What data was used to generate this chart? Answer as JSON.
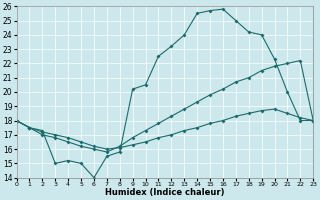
{
  "xlabel": "Humidex (Indice chaleur)",
  "xlim": [
    0,
    23
  ],
  "ylim": [
    14,
    26
  ],
  "xticks": [
    0,
    1,
    2,
    3,
    4,
    5,
    6,
    7,
    8,
    9,
    10,
    11,
    12,
    13,
    14,
    15,
    16,
    17,
    18,
    19,
    20,
    21,
    22,
    23
  ],
  "yticks": [
    14,
    15,
    16,
    17,
    18,
    19,
    20,
    21,
    22,
    23,
    24,
    25,
    26
  ],
  "bg_color": "#cce8ec",
  "line_color": "#1a6b6b",
  "line1_x": [
    0,
    1,
    2,
    3,
    4,
    5,
    6,
    7,
    8,
    9,
    10,
    11,
    12,
    13,
    14,
    15,
    16,
    17,
    18,
    19,
    20,
    21,
    22,
    23
  ],
  "line1_y": [
    18,
    17.5,
    17.3,
    15.0,
    15.2,
    15.0,
    14.0,
    15.5,
    15.8,
    20.2,
    20.5,
    22.5,
    23.2,
    24.0,
    25.5,
    25.7,
    25.8,
    25.0,
    24.2,
    24.0,
    22.3,
    20.0,
    18.0,
    18.0
  ],
  "line2_x": [
    0,
    1,
    2,
    3,
    4,
    5,
    6,
    7,
    8,
    9,
    10,
    11,
    12,
    13,
    14,
    15,
    16,
    17,
    18,
    19,
    20,
    21,
    22,
    23
  ],
  "line2_y": [
    18.0,
    17.5,
    17.2,
    17.0,
    16.8,
    16.5,
    16.2,
    16.0,
    16.1,
    16.3,
    16.5,
    16.8,
    17.0,
    17.3,
    17.5,
    17.8,
    18.0,
    18.3,
    18.5,
    18.7,
    18.8,
    18.5,
    18.2,
    18.0
  ],
  "line3_x": [
    0,
    1,
    2,
    3,
    4,
    5,
    6,
    7,
    8,
    9,
    10,
    11,
    12,
    13,
    14,
    15,
    16,
    17,
    18,
    19,
    20,
    21,
    22,
    23
  ],
  "line3_y": [
    18.0,
    17.5,
    17.0,
    16.8,
    16.5,
    16.2,
    16.0,
    15.8,
    16.2,
    16.8,
    17.3,
    17.8,
    18.3,
    18.8,
    19.3,
    19.8,
    20.2,
    20.7,
    21.0,
    21.5,
    21.8,
    22.0,
    22.2,
    18.0
  ]
}
